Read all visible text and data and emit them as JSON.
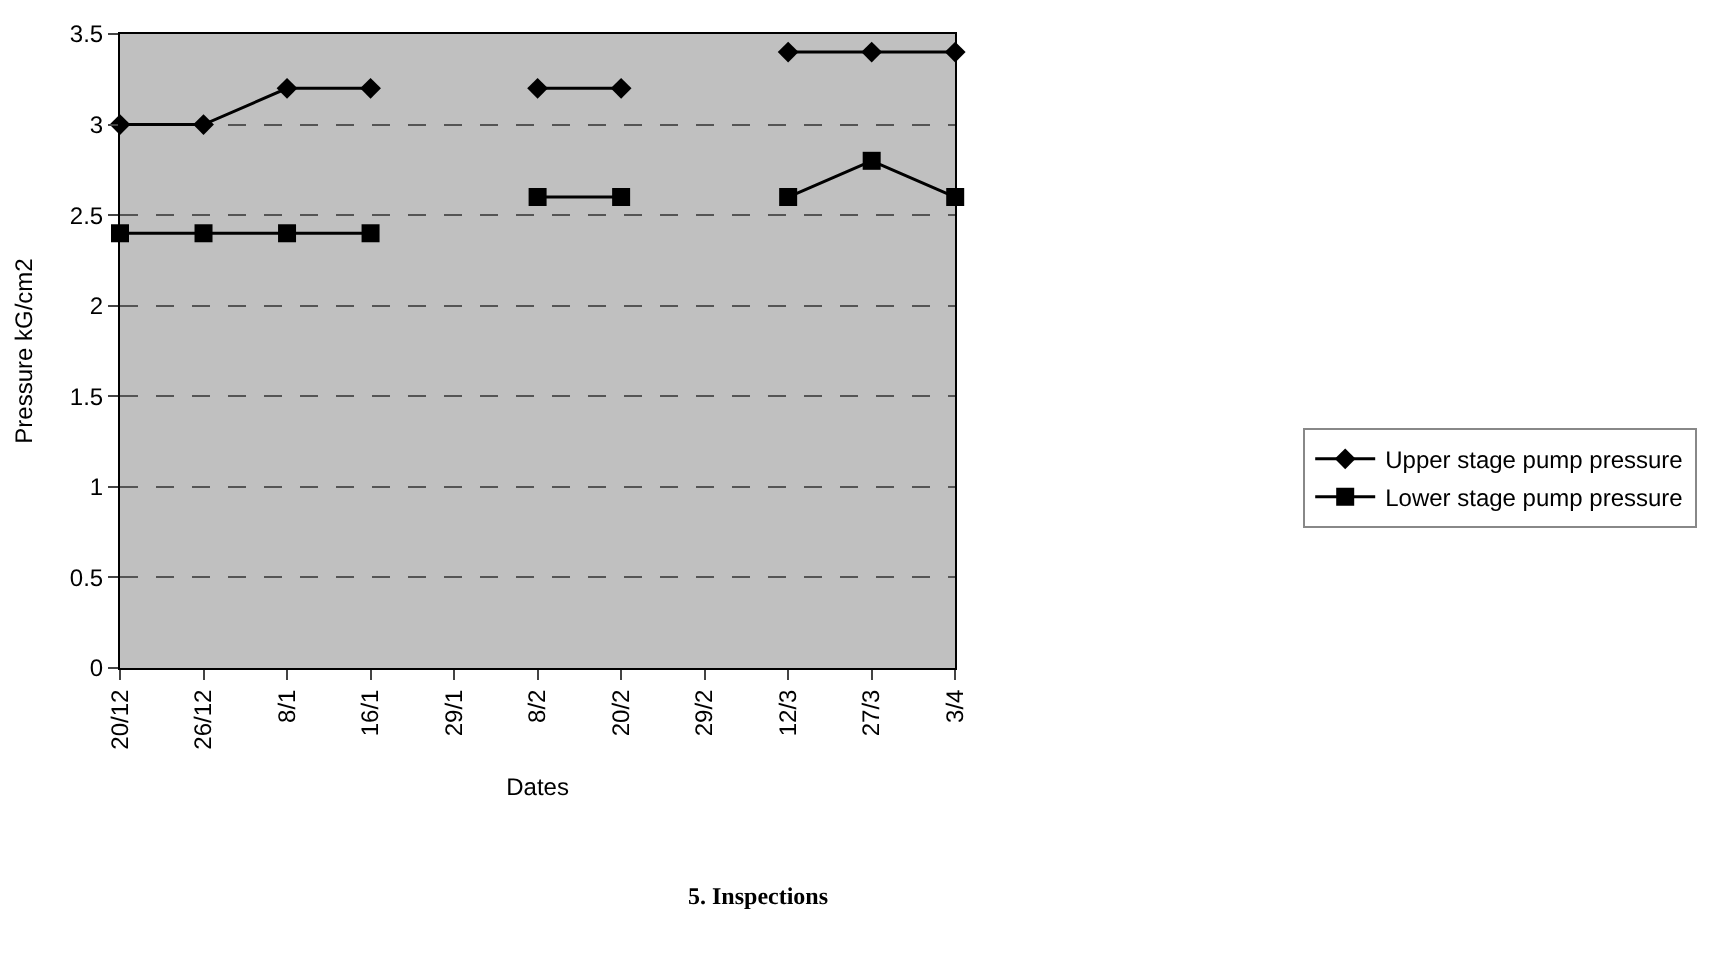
{
  "chart_data": {
    "type": "line",
    "xlabel": "Dates",
    "ylabel": "Pressure kG/cm2",
    "categories": [
      "20/12",
      "26/12",
      "8/1",
      "16/1",
      "29/1",
      "8/2",
      "20/2",
      "29/2",
      "12/3",
      "27/3",
      "3/4"
    ],
    "series": [
      {
        "name": "Upper stage pump pressure",
        "color": "#000000",
        "marker": "diamond",
        "values": [
          3.0,
          3.0,
          3.2,
          3.2,
          null,
          3.2,
          3.2,
          null,
          3.4,
          3.4,
          3.4
        ]
      },
      {
        "name": "Lower stage pump pressure",
        "color": "#000000",
        "marker": "square",
        "values": [
          2.4,
          2.4,
          2.4,
          2.4,
          null,
          2.6,
          2.6,
          null,
          2.6,
          2.8,
          2.6
        ]
      }
    ],
    "ylim": [
      0,
      3.5
    ],
    "yticks": [
      0,
      0.5,
      1,
      1.5,
      2,
      2.5,
      3,
      3.5
    ],
    "grid": "y",
    "legend": "right",
    "annotations": [
      "5. Inspections"
    ]
  }
}
